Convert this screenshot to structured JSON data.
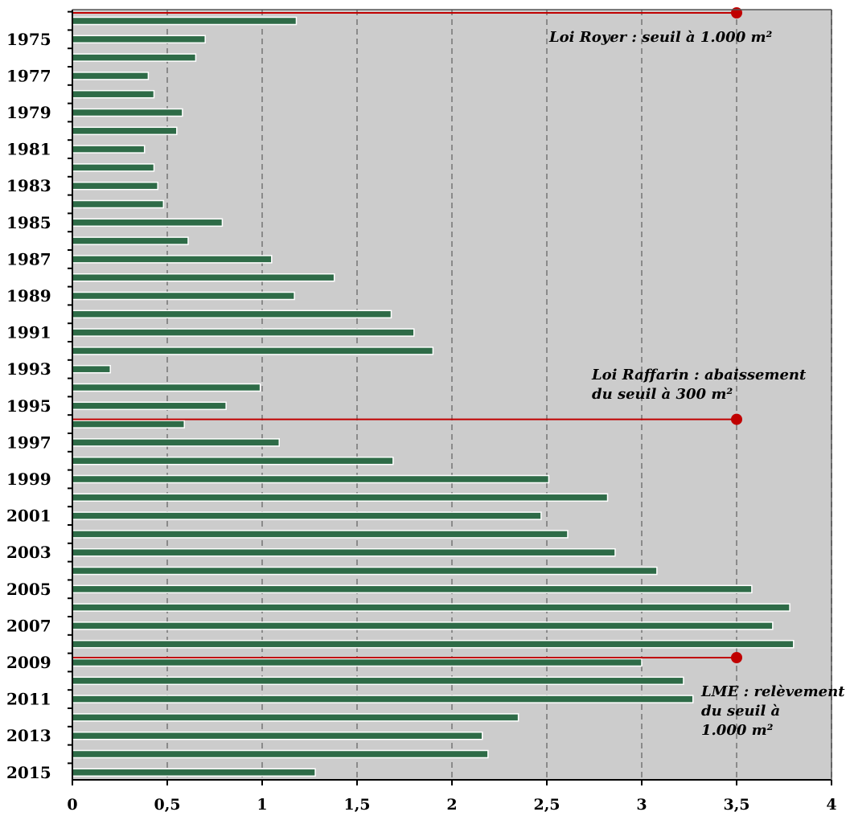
{
  "colors": {
    "plot_background": "#cccccc",
    "bar_fill": "#2e6b47",
    "bar_edge": "#ffffff",
    "gridline": "#8a8a8a",
    "marker": "#c00000",
    "annotation_line": "#c00000"
  },
  "chart_data": {
    "type": "bar",
    "orientation": "horizontal",
    "title": "",
    "xlabel": "",
    "ylabel": "",
    "xlim": [
      0,
      4
    ],
    "xticks": [
      0,
      0.5,
      1,
      1.5,
      2,
      2.5,
      3,
      3.5,
      4
    ],
    "xtick_labels": [
      "0",
      "0,5",
      "1",
      "1,5",
      "2",
      "2,5",
      "3",
      "3,5",
      "4"
    ],
    "grid": "vertical dashed",
    "legend": "none",
    "categories": [
      "1974",
      "1975",
      "1976",
      "1977",
      "1978",
      "1979",
      "1980",
      "1981",
      "1982",
      "1983",
      "1984",
      "1985",
      "1986",
      "1987",
      "1988",
      "1989",
      "1990",
      "1991",
      "1992",
      "1993",
      "1994",
      "1995",
      "1996",
      "1997",
      "1998",
      "1999",
      "2000",
      "2001",
      "2002",
      "2003",
      "2004",
      "2005",
      "2006",
      "2007",
      "2008",
      "2009",
      "2010",
      "2011",
      "2012",
      "2013",
      "2014",
      "2015"
    ],
    "category_labels_shown": [
      "1975",
      "1977",
      "1979",
      "1981",
      "1983",
      "1985",
      "1987",
      "1989",
      "1991",
      "1993",
      "1995",
      "1997",
      "1999",
      "2001",
      "2003",
      "2005",
      "2007",
      "2009",
      "2011",
      "2013",
      "2015"
    ],
    "values": [
      1.18,
      0.7,
      0.65,
      0.4,
      0.43,
      0.58,
      0.55,
      0.38,
      0.43,
      0.45,
      0.48,
      0.79,
      0.61,
      1.05,
      1.38,
      1.17,
      1.68,
      1.8,
      1.9,
      0.2,
      0.99,
      0.81,
      0.59,
      1.09,
      1.69,
      2.51,
      2.82,
      2.47,
      2.61,
      2.86,
      3.08,
      3.58,
      3.78,
      3.69,
      3.8,
      3.0,
      3.22,
      3.27,
      2.35,
      2.16,
      2.19,
      1.28
    ],
    "annotations": [
      {
        "text_lines": [
          "Loi Royer : seuil à 1.000 m²"
        ],
        "year": "1973",
        "marker_x": 3.5
      },
      {
        "text_lines": [
          "Loi Raffarin : abaissement",
          "du seuil à 300 m²"
        ],
        "year": "1996",
        "marker_x": 3.5
      },
      {
        "text_lines": [
          "LME : relèvement",
          "du seuil à",
          "1.000 m²"
        ],
        "year": "2009",
        "marker_x": 3.5
      }
    ]
  }
}
